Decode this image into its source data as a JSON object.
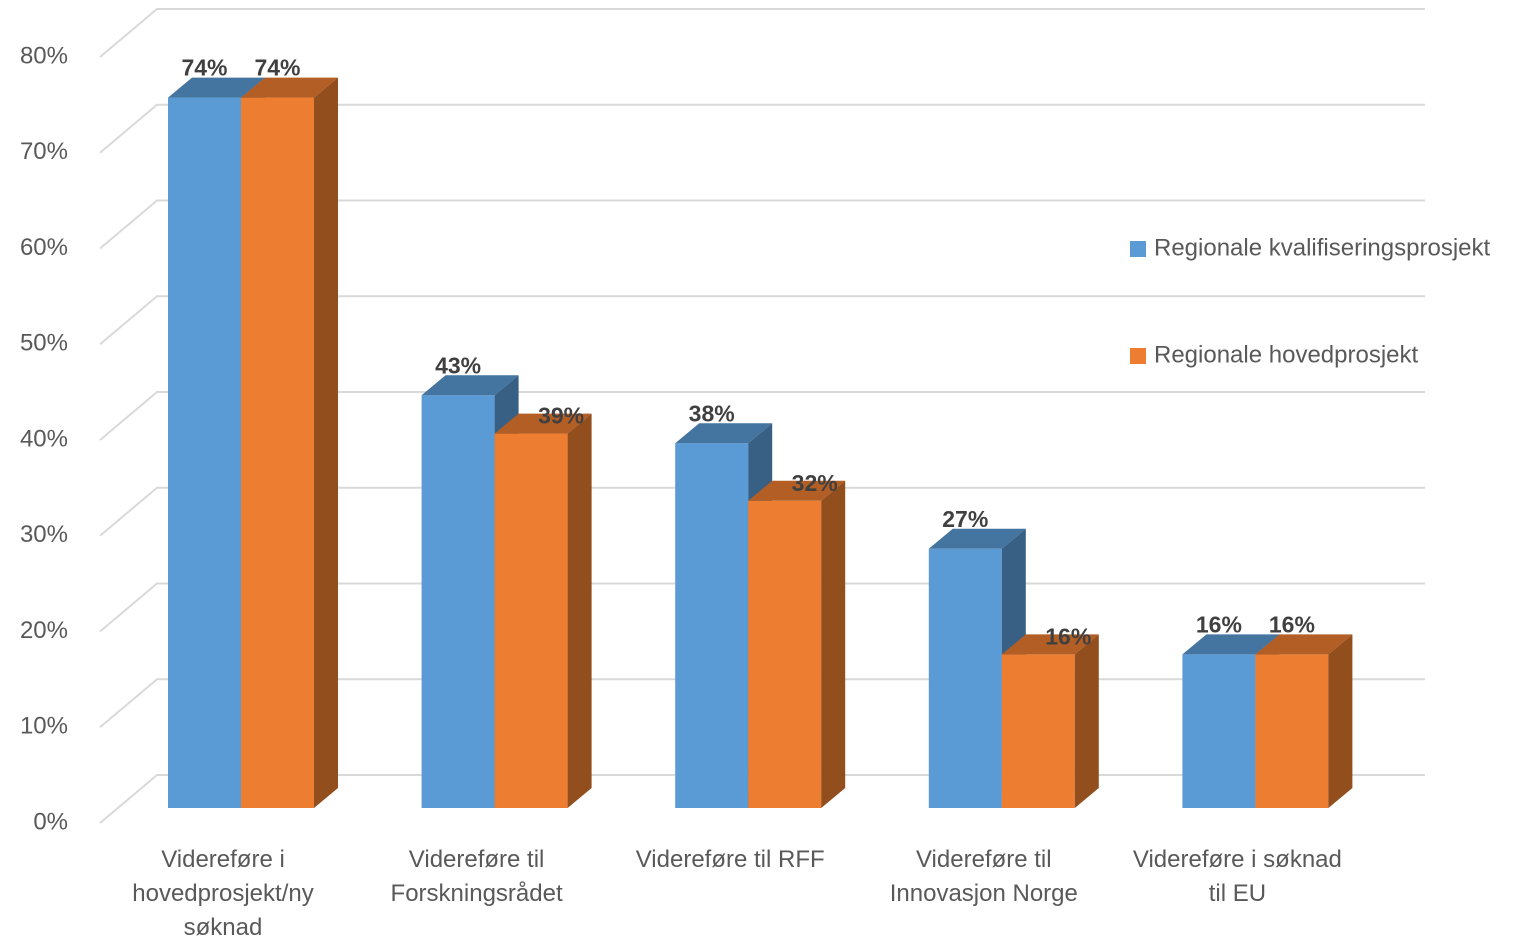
{
  "chart_data": {
    "type": "bar3d",
    "categories": [
      "Videreføre i hovedprosjekt/ny søknad",
      "Videreføre til Forskningsrådet",
      "Videreføre til RFF",
      "Videreføre til Innovasjon Norge",
      "Videreføre i søknad til EU"
    ],
    "series": [
      {
        "name": "Regionale kvalifiseringsprosjekt",
        "color": "#5b9bd5",
        "values": [
          74,
          43,
          38,
          27,
          16
        ],
        "value_labels": [
          "74%",
          "43%",
          "38%",
          "27%",
          "16%"
        ]
      },
      {
        "name": "Regionale hovedprosjekt",
        "color": "#ed7d31",
        "values": [
          74,
          39,
          32,
          16,
          16
        ],
        "value_labels": [
          "74%",
          "39%",
          "32%",
          "16%",
          "16%"
        ]
      }
    ],
    "ylim": [
      0,
      80
    ],
    "yticks": [
      {
        "value": 0,
        "label": "0%"
      },
      {
        "value": 10,
        "label": "10%"
      },
      {
        "value": 20,
        "label": "20%"
      },
      {
        "value": 30,
        "label": "30%"
      },
      {
        "value": 40,
        "label": "40%"
      },
      {
        "value": 50,
        "label": "50%"
      },
      {
        "value": 60,
        "label": "60%"
      },
      {
        "value": 70,
        "label": "70%"
      },
      {
        "value": 80,
        "label": "80%"
      }
    ],
    "grid": true,
    "legend": "right"
  }
}
